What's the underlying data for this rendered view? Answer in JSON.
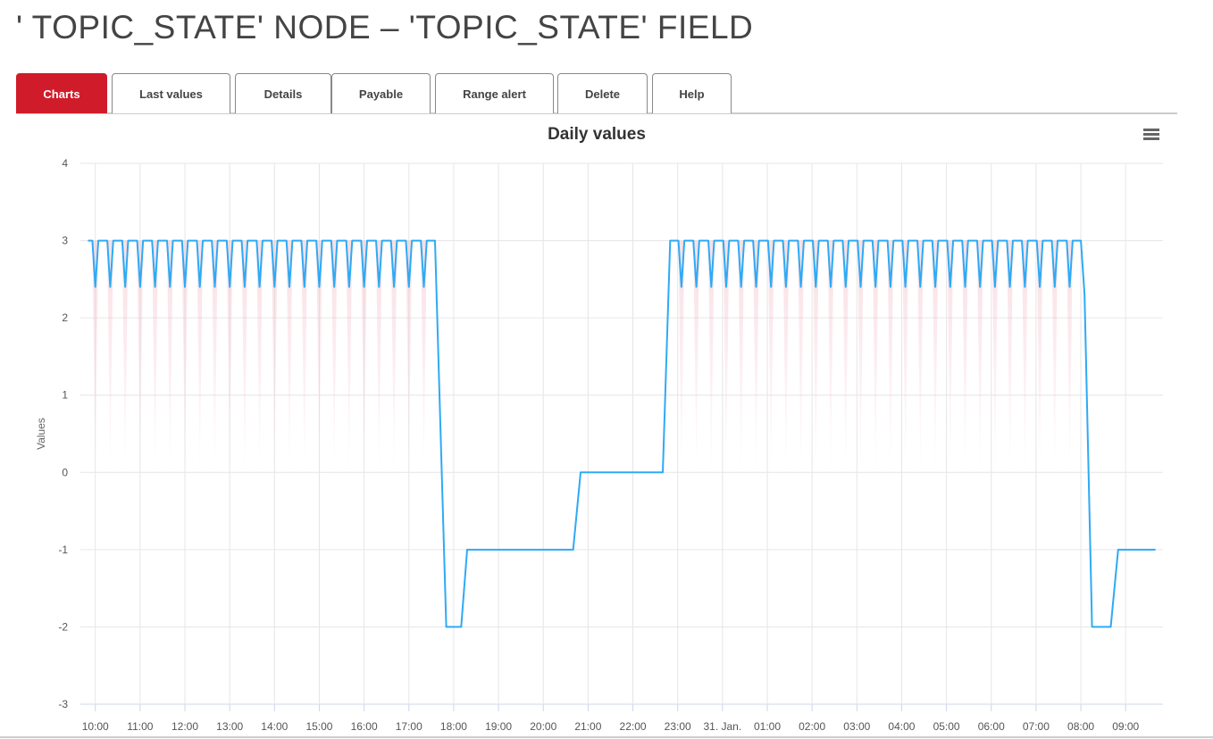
{
  "page_title": "' TOPIC_STATE' NODE – 'TOPIC_STATE' FIELD",
  "tabs": [
    {
      "label": "Charts",
      "active": true
    },
    {
      "label": "Last values",
      "active": false
    },
    {
      "label": "Details",
      "active": false
    },
    {
      "label": "Payable",
      "active": false
    },
    {
      "label": "Range alert",
      "active": false
    },
    {
      "label": "Delete",
      "active": false
    },
    {
      "label": "Help",
      "active": false
    }
  ],
  "menu_icon": "hamburger-menu-icon",
  "colors": {
    "accent": "#d01c2a",
    "line": "#2eaaf5",
    "range": "#f4b8c4",
    "grid": "#e6e6e6"
  },
  "chart_data": {
    "type": "line",
    "title": "Daily values",
    "ylabel": "Values",
    "xlabel": "",
    "ylim": [
      -3,
      4
    ],
    "yticks": [
      "4",
      "3",
      "2",
      "1",
      "0",
      "-1",
      "-2",
      "-3"
    ],
    "xlim": [
      "30 09:40",
      "31 09:50"
    ],
    "xticks": [
      {
        "t": "30 10:00",
        "label": "10:00"
      },
      {
        "t": "30 11:00",
        "label": "11:00"
      },
      {
        "t": "30 12:00",
        "label": "12:00"
      },
      {
        "t": "30 13:00",
        "label": "13:00"
      },
      {
        "t": "30 14:00",
        "label": "14:00"
      },
      {
        "t": "30 15:00",
        "label": "15:00"
      },
      {
        "t": "30 16:00",
        "label": "16:00"
      },
      {
        "t": "30 17:00",
        "label": "17:00"
      },
      {
        "t": "30 18:00",
        "label": "18:00"
      },
      {
        "t": "30 19:00",
        "label": "19:00"
      },
      {
        "t": "30 20:00",
        "label": "20:00"
      },
      {
        "t": "30 21:00",
        "label": "21:00"
      },
      {
        "t": "30 22:00",
        "label": "22:00"
      },
      {
        "t": "30 23:00",
        "label": "23:00"
      },
      {
        "t": "31 00:00",
        "label": "31. Jan."
      },
      {
        "t": "31 01:00",
        "label": "01:00"
      },
      {
        "t": "31 02:00",
        "label": "02:00"
      },
      {
        "t": "31 03:00",
        "label": "03:00"
      },
      {
        "t": "31 04:00",
        "label": "04:00"
      },
      {
        "t": "31 05:00",
        "label": "05:00"
      },
      {
        "t": "31 06:00",
        "label": "06:00"
      },
      {
        "t": "31 07:00",
        "label": "07:00"
      },
      {
        "t": "31 08:00",
        "label": "08:00"
      },
      {
        "t": "31 09:00",
        "label": "09:00"
      }
    ],
    "grid": true,
    "legend": "none",
    "series_line": [
      [
        "30 09:50",
        3
      ],
      [
        "30 17:35",
        3
      ],
      [
        "30 17:50",
        -2
      ],
      [
        "30 18:10",
        -2
      ],
      [
        "30 18:18",
        -1
      ],
      [
        "30 20:40",
        -1
      ],
      [
        "30 20:50",
        0
      ],
      [
        "30 22:40",
        0
      ],
      [
        "30 22:50",
        3
      ],
      [
        "31 08:00",
        3
      ],
      [
        "31 08:05",
        2.3
      ],
      [
        "31 08:15",
        -2
      ],
      [
        "31 08:40",
        -2
      ],
      [
        "31 08:50",
        -1
      ],
      [
        "31 09:40",
        -1
      ]
    ],
    "dips": {
      "value": 2.4,
      "range_min": 0,
      "high": 3,
      "times": [
        "30 10:00",
        "30 10:20",
        "30 10:40",
        "30 11:00",
        "30 11:20",
        "30 11:40",
        "30 12:00",
        "30 12:20",
        "30 12:40",
        "30 13:00",
        "30 13:20",
        "30 13:40",
        "30 14:00",
        "30 14:20",
        "30 14:40",
        "30 15:00",
        "30 15:20",
        "30 15:40",
        "30 16:00",
        "30 16:20",
        "30 16:40",
        "30 17:00",
        "30 17:20",
        "30 23:05",
        "30 23:25",
        "30 23:45",
        "31 00:05",
        "31 00:25",
        "31 00:45",
        "31 01:05",
        "31 01:25",
        "31 01:45",
        "31 02:05",
        "31 02:25",
        "31 02:45",
        "31 03:05",
        "31 03:25",
        "31 03:45",
        "31 04:05",
        "31 04:25",
        "31 04:45",
        "31 05:05",
        "31 05:25",
        "31 05:45",
        "31 06:05",
        "31 06:25",
        "31 06:45",
        "31 07:05",
        "31 07:25",
        "31 07:45"
      ]
    }
  }
}
